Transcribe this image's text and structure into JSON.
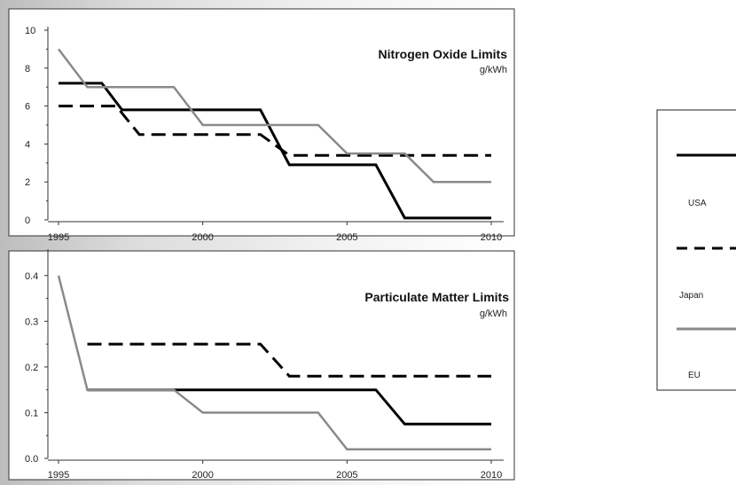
{
  "chart_data": [
    {
      "type": "line",
      "title": "Nitrogen Oxide Limits",
      "subtitle": "g/kWh",
      "xlim": [
        1995,
        2010
      ],
      "ylim": [
        0,
        10
      ],
      "x_ticks": [
        "1995",
        "2000",
        "2005",
        "2010"
      ],
      "y_ticks": [
        "0",
        "2",
        "4",
        "6",
        "8",
        "10"
      ],
      "series": [
        {
          "name": "USA",
          "color": "#000000",
          "dash": "solid",
          "points": [
            [
              1995,
              7.2
            ],
            [
              1996.5,
              7.2
            ],
            [
              1997.2,
              5.8
            ],
            [
              2002,
              5.8
            ],
            [
              2003,
              2.9
            ],
            [
              2006,
              2.9
            ],
            [
              2007,
              0.1
            ],
            [
              2010,
              0.1
            ]
          ]
        },
        {
          "name": "Japan",
          "color": "#000000",
          "dash": "dashed",
          "points": [
            [
              1995,
              6.0
            ],
            [
              1997,
              6.0
            ],
            [
              1997.8,
              4.5
            ],
            [
              2002,
              4.5
            ],
            [
              2003,
              3.4
            ],
            [
              2010,
              3.4
            ]
          ]
        },
        {
          "name": "EU",
          "color": "#8a8a8a",
          "dash": "solid",
          "points": [
            [
              1995,
              9.0
            ],
            [
              1996,
              7.0
            ],
            [
              1999,
              7.0
            ],
            [
              2000,
              5.0
            ],
            [
              2002,
              5.0
            ],
            [
              2003,
              5.0
            ],
            [
              2004,
              5.0
            ],
            [
              2005,
              3.5
            ],
            [
              2007,
              3.5
            ],
            [
              2008,
              2.0
            ],
            [
              2010,
              2.0
            ]
          ]
        }
      ]
    },
    {
      "type": "line",
      "title": "Particulate Matter Limits",
      "subtitle": "g/kWh",
      "xlim": [
        1995,
        2010
      ],
      "ylim": [
        0,
        0.45
      ],
      "x_ticks": [
        "1995",
        "2000",
        "2005",
        "2010"
      ],
      "y_ticks": [
        "0.0",
        "0.1",
        "0.2",
        "0.3",
        "0.4"
      ],
      "series": [
        {
          "name": "USA",
          "color": "#000000",
          "dash": "solid",
          "points": [
            [
              1996,
              0.15
            ],
            [
              2006,
              0.15
            ],
            [
              2007,
              0.075
            ],
            [
              2010,
              0.075
            ]
          ]
        },
        {
          "name": "Japan",
          "color": "#000000",
          "dash": "dashed",
          "points": [
            [
              1996,
              0.25
            ],
            [
              2002,
              0.25
            ],
            [
              2003,
              0.18
            ],
            [
              2010,
              0.18
            ]
          ]
        },
        {
          "name": "EU",
          "color": "#8a8a8a",
          "dash": "solid",
          "points": [
            [
              1995,
              0.4
            ],
            [
              1996,
              0.15
            ],
            [
              1999,
              0.15
            ],
            [
              2000,
              0.1
            ],
            [
              2004,
              0.1
            ],
            [
              2005,
              0.02
            ],
            [
              2010,
              0.02
            ]
          ]
        }
      ]
    }
  ],
  "legend": {
    "items": [
      {
        "label": "USA",
        "color": "#000000",
        "dash": "solid"
      },
      {
        "label": "Japan",
        "color": "#000000",
        "dash": "dashed"
      },
      {
        "label": "EU",
        "color": "#8a8a8a",
        "dash": "solid"
      }
    ]
  }
}
